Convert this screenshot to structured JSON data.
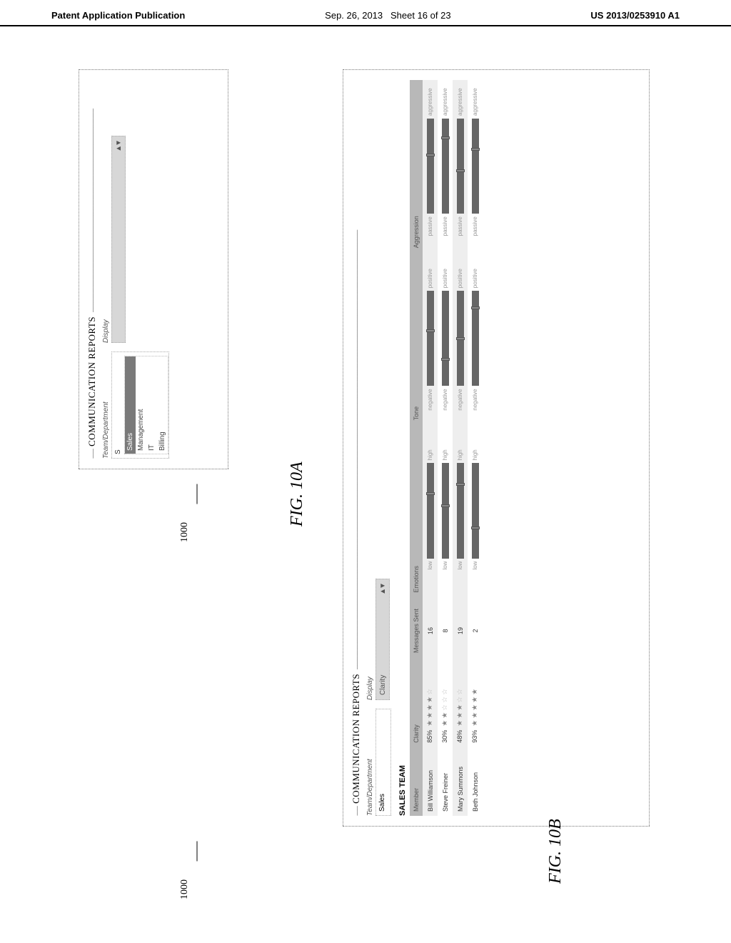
{
  "header": {
    "left": "Patent Application Publication",
    "center_date": "Sep. 26, 2013",
    "center_sheet": "Sheet 16 of 23",
    "right": "US 2013/0253910 A1"
  },
  "ref_number": "1000",
  "figA": {
    "label": "FIG. 10A",
    "section_title": "COMMUNICATION REPORTS",
    "team_dept_label": "Team/Department",
    "typed": "S",
    "options": [
      "Sales",
      "Management",
      "IT",
      "Billing"
    ],
    "selected_index": 0,
    "display_label": "Display"
  },
  "figB": {
    "label": "FIG. 10B",
    "section_title": "COMMUNICATION REPORTS",
    "team_dept_label": "Team/Department",
    "dept_value": "Sales",
    "display_label": "Display",
    "display_value": "Clarity",
    "team_title": "SALES TEAM",
    "columns": [
      "Member",
      "Clarity",
      "Messages Sent",
      "Emotions",
      "Tone",
      "Aggression"
    ],
    "emotions_labels": {
      "left": "low",
      "right": "high"
    },
    "tone_labels": {
      "left": "negative",
      "right": "positive"
    },
    "aggression_labels": {
      "left": "passive",
      "right": "aggressive"
    },
    "rows": [
      {
        "member": "Bill Williamson",
        "clarity_pct": "85%",
        "stars": 4,
        "messages": "16",
        "emotions_pos": 0.68,
        "tone_pos": 0.58,
        "aggression_pos": 0.62
      },
      {
        "member": "Steve Freiner",
        "clarity_pct": "30%",
        "stars": 2,
        "messages": "8",
        "emotions_pos": 0.55,
        "tone_pos": 0.28,
        "aggression_pos": 0.8
      },
      {
        "member": "Mary Summons",
        "clarity_pct": "48%",
        "stars": 3,
        "messages": "19",
        "emotions_pos": 0.78,
        "tone_pos": 0.5,
        "aggression_pos": 0.45
      },
      {
        "member": "Beth Johnson",
        "clarity_pct": "93%",
        "stars": 5,
        "messages": "2",
        "emotions_pos": 0.32,
        "tone_pos": 0.82,
        "aggression_pos": 0.68
      }
    ]
  },
  "colors": {
    "header_bg": "#b8b8b8",
    "row_odd": "#eeeeee",
    "row_even": "#ffffff",
    "bar_fill": "#666666",
    "display_bg": "#d7d7d7",
    "sel_bg": "#7a7a7a"
  }
}
